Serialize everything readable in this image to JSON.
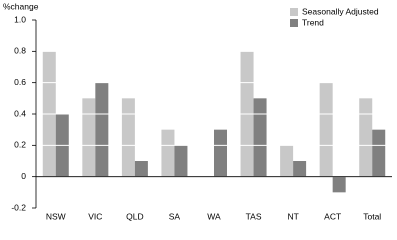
{
  "chart_data": {
    "type": "bar",
    "y_label": "%change",
    "categories": [
      "NSW",
      "VIC",
      "QLD",
      "SA",
      "WA",
      "TAS",
      "NT",
      "ACT",
      "Total"
    ],
    "series": [
      {
        "name": "Seasonally Adjusted",
        "color": "#c8c8c8",
        "values": [
          0.8,
          0.5,
          0.5,
          0.3,
          0,
          0.8,
          0.2,
          0.6,
          0.5
        ]
      },
      {
        "name": "Trend",
        "color": "#808080",
        "values": [
          0.4,
          0.6,
          0.1,
          0.2,
          0.3,
          0.5,
          0.1,
          -0.1,
          0.3
        ]
      }
    ],
    "ylim": [
      -0.2,
      1.0
    ],
    "yticks": [
      -0.2,
      0,
      0.2,
      0.4,
      0.6,
      0.8,
      {
        "value": 1.0,
        "label": "1.0"
      }
    ],
    "grid": true,
    "legend": "top-right"
  }
}
